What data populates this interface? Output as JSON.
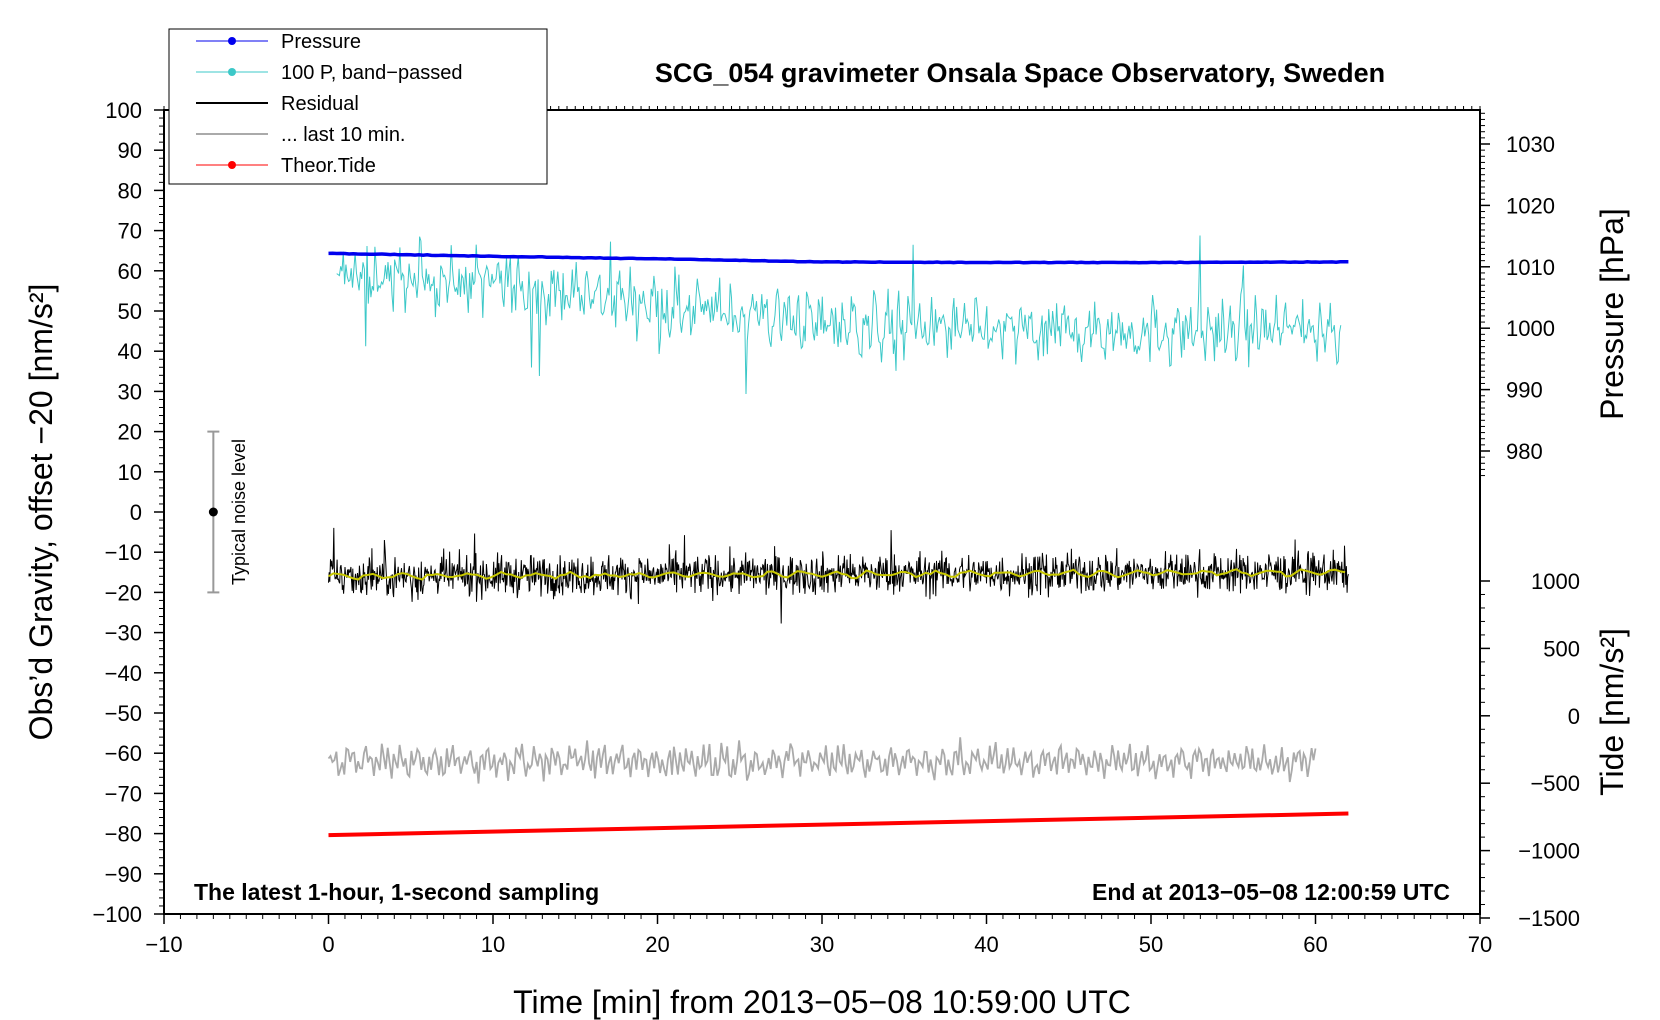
{
  "chart_data": {
    "type": "line",
    "title": "SCG_054 gravimeter Onsala Space Observatory, Sweden",
    "xlabel": "Time [min] from 2013−05−08 10:59:00 UTC",
    "ylabel": "Obs’d Gravity, offset −20 [nm/s²]",
    "xlim": [
      -10,
      70
    ],
    "ylim": [
      -100,
      100
    ],
    "xticks": [
      "−10",
      "0",
      "10",
      "20",
      "30",
      "40",
      "50",
      "60",
      "70"
    ],
    "yticks": [
      "100",
      "90",
      "80",
      "70",
      "60",
      "50",
      "40",
      "30",
      "20",
      "10",
      "0",
      "−10",
      "−20",
      "−30",
      "−40",
      "−50",
      "−60",
      "−70",
      "−80",
      "−90",
      "−100"
    ],
    "right_axis_pressure": {
      "label": "Pressure [hPa]",
      "ticks": [
        "1030",
        "1020",
        "1010",
        "1000",
        "990",
        "980"
      ],
      "tick_values": [
        1030,
        1020,
        1010,
        1000,
        990,
        980
      ]
    },
    "right_axis_tide": {
      "label": "Tide [nm/s²]",
      "ticks": [
        "1000",
        "500",
        "0",
        "−500",
        "−1000",
        "−1500"
      ],
      "tick_values": [
        1000,
        500,
        0,
        -500,
        -1000,
        -1500
      ]
    },
    "left_annotation": "The latest 1-hour, 1-second sampling",
    "right_annotation": "End at 2013−05−08 12:00:59 UTC",
    "noise_label": "Typical noise level",
    "noise_bar": {
      "x": -7,
      "center": 0,
      "half_range": 20
    },
    "legend": {
      "position": "top-left",
      "entries": [
        "Pressure",
        "100 P, band−passed",
        "Residual",
        "... last 10 min.",
        "Theor.Tide"
      ]
    },
    "colors": {
      "pressure": "#0000ee",
      "band_passed": "#3cc8c8",
      "residual": "#000000",
      "residual_smooth": "#c8c800",
      "last_10_min": "#aaaaaa",
      "tide": "#ff0000"
    },
    "series": [
      {
        "name": "Pressure",
        "axis": "pressure_hPa",
        "x": [
          0,
          10,
          20,
          30,
          40,
          50,
          62
        ],
        "values": [
          1012.2,
          1011.7,
          1011.3,
          1010.8,
          1010.7,
          1010.7,
          1010.8
        ]
      },
      {
        "name": "100 P, band−passed",
        "x": [
          0,
          10,
          20,
          30,
          40,
          50,
          62
        ],
        "values": [
          59,
          57,
          52,
          47,
          45,
          45,
          46
        ],
        "noise_amplitude": 8
      },
      {
        "name": "Residual",
        "x": [
          0,
          62
        ],
        "values": [
          -16,
          -15
        ],
        "noise_amplitude": 4
      },
      {
        "name": "... last 10 min.",
        "x": [
          0,
          60
        ],
        "values": [
          -62,
          -62
        ],
        "noise_amplitude": 4
      },
      {
        "name": "Theor.Tide",
        "axis": "tide_nm_s2",
        "x": [
          0,
          62
        ],
        "values": [
          -885,
          -725
        ]
      }
    ]
  }
}
